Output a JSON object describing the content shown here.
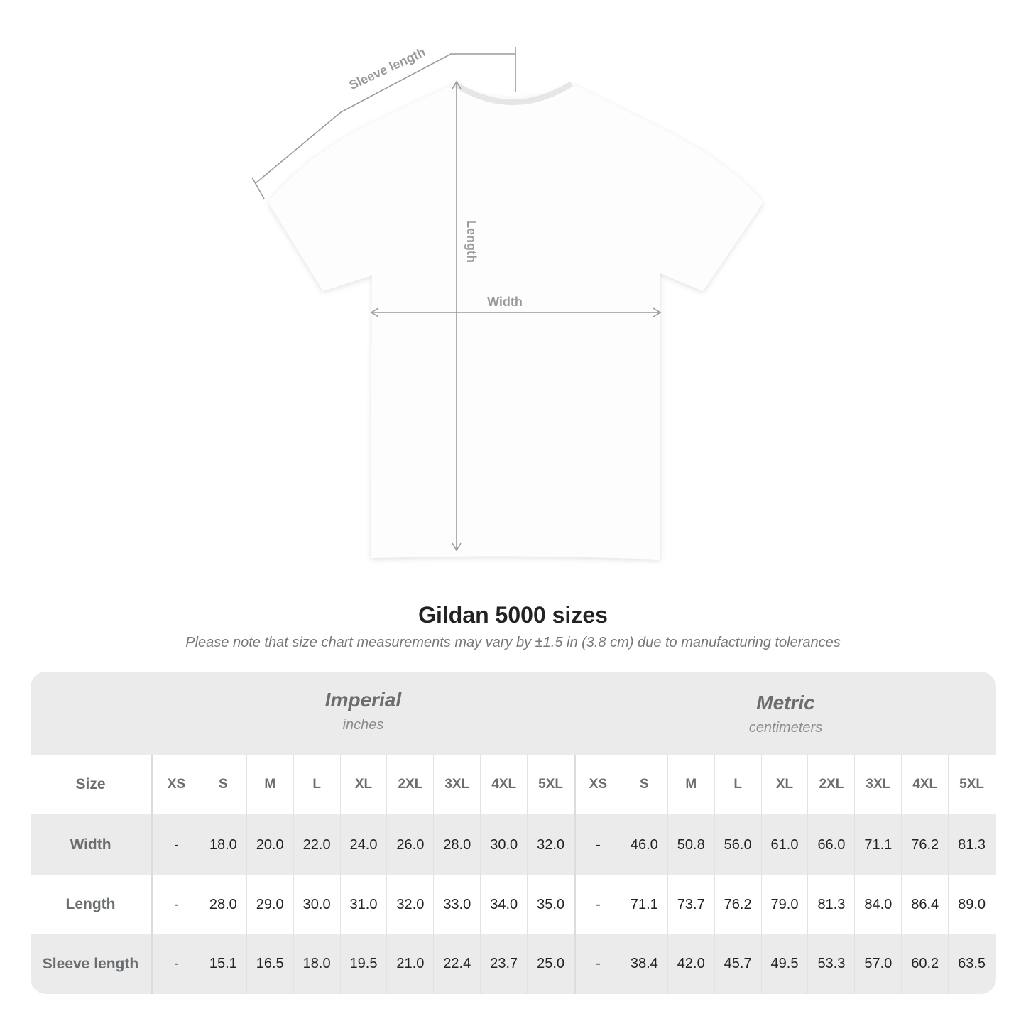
{
  "diagram": {
    "labels": {
      "sleeve": "Sleeve length",
      "length": "Length",
      "width": "Width"
    },
    "line_color": "#999999"
  },
  "header": {
    "title": "Gildan 5000 sizes",
    "subtitle": "Please note that size chart measurements may vary by ±1.5 in (3.8 cm) due to manufacturing tolerances"
  },
  "table": {
    "imperial": {
      "name": "Imperial",
      "unit": "inches"
    },
    "metric": {
      "name": "Metric",
      "unit": "centimeters"
    },
    "size_label": "Size",
    "sizes": [
      "XS",
      "S",
      "M",
      "L",
      "XL",
      "2XL",
      "3XL",
      "4XL",
      "5XL"
    ],
    "rows": [
      {
        "label": "Width",
        "imperial": [
          "-",
          "18.0",
          "20.0",
          "22.0",
          "24.0",
          "26.0",
          "28.0",
          "30.0",
          "32.0"
        ],
        "metric": [
          "-",
          "46.0",
          "50.8",
          "56.0",
          "61.0",
          "66.0",
          "71.1",
          "76.2",
          "81.3"
        ]
      },
      {
        "label": "Length",
        "imperial": [
          "-",
          "28.0",
          "29.0",
          "30.0",
          "31.0",
          "32.0",
          "33.0",
          "34.0",
          "35.0"
        ],
        "metric": [
          "-",
          "71.1",
          "73.7",
          "76.2",
          "79.0",
          "81.3",
          "84.0",
          "86.4",
          "89.0"
        ]
      },
      {
        "label": "Sleeve length",
        "imperial": [
          "-",
          "15.1",
          "16.5",
          "18.0",
          "19.5",
          "21.0",
          "22.4",
          "23.7",
          "25.0"
        ],
        "metric": [
          "-",
          "38.4",
          "42.0",
          "45.7",
          "49.5",
          "53.3",
          "57.0",
          "60.2",
          "63.5"
        ]
      }
    ]
  }
}
